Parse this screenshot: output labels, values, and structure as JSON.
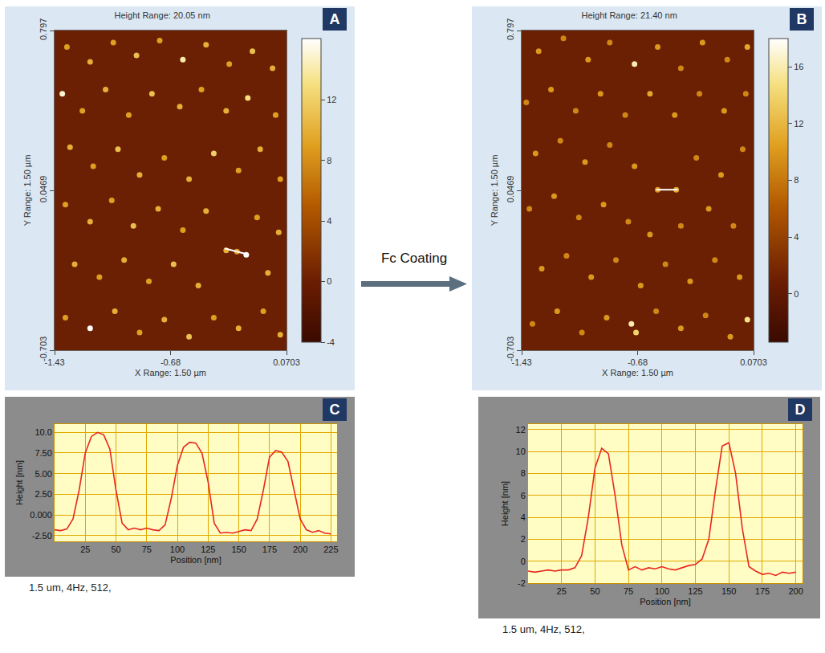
{
  "arrow_label": "Fc Coating",
  "chart_data": [
    {
      "label": "A",
      "type": "scatter",
      "title": "Height Range: 20.05 nm",
      "x_label": "X Range: 1.50 µm",
      "y_label": "Y Range: 1.50 µm",
      "xlim": [
        -1.43,
        0.0703
      ],
      "xticks": [
        -1.43,
        -0.68,
        0.0703
      ],
      "ylim": [
        -0.703,
        0.797
      ],
      "yticks": [
        -0.703,
        0.0469,
        0.797
      ],
      "colorbar_range": [
        -4,
        16.05
      ],
      "colorbar_ticks": [
        -4,
        0,
        4,
        8,
        12
      ],
      "grid": false,
      "profile_line": {
        "x": [
          -0.33,
          -0.2
        ],
        "y": [
          -0.225,
          -0.25
        ]
      },
      "particles": [
        [
          -1.35,
          0.72,
          9
        ],
        [
          -1.2,
          0.65,
          10
        ],
        [
          -1.05,
          0.74,
          9
        ],
        [
          -0.9,
          0.68,
          11
        ],
        [
          -0.75,
          0.75,
          9
        ],
        [
          -0.6,
          0.66,
          14
        ],
        [
          -0.45,
          0.73,
          10
        ],
        [
          -0.3,
          0.64,
          9
        ],
        [
          -0.15,
          0.7,
          11
        ],
        [
          -0.02,
          0.62,
          10
        ],
        [
          -1.38,
          0.5,
          15
        ],
        [
          -1.25,
          0.42,
          9
        ],
        [
          -1.1,
          0.52,
          10
        ],
        [
          -0.95,
          0.4,
          9
        ],
        [
          -0.8,
          0.5,
          11
        ],
        [
          -0.62,
          0.44,
          10
        ],
        [
          -0.48,
          0.52,
          9
        ],
        [
          -0.32,
          0.42,
          10
        ],
        [
          -0.18,
          0.48,
          13
        ],
        [
          0.0,
          0.4,
          9
        ],
        [
          -1.33,
          0.25,
          10
        ],
        [
          -1.18,
          0.16,
          9
        ],
        [
          -1.02,
          0.24,
          11
        ],
        [
          -0.88,
          0.12,
          10
        ],
        [
          -0.72,
          0.2,
          9
        ],
        [
          -0.56,
          0.1,
          10
        ],
        [
          -0.4,
          0.22,
          12
        ],
        [
          -0.24,
          0.14,
          9
        ],
        [
          -0.1,
          0.24,
          10
        ],
        [
          0.03,
          0.1,
          9
        ],
        [
          -1.36,
          -0.02,
          9
        ],
        [
          -1.2,
          -0.1,
          10
        ],
        [
          -1.06,
          0.0,
          9
        ],
        [
          -0.92,
          -0.12,
          11
        ],
        [
          -0.76,
          -0.04,
          10
        ],
        [
          -0.6,
          -0.14,
          9
        ],
        [
          -0.45,
          -0.05,
          10
        ],
        [
          -0.12,
          -0.08,
          9
        ],
        [
          0.02,
          -0.15,
          10
        ],
        [
          -1.3,
          -0.3,
          10
        ],
        [
          -1.14,
          -0.36,
          9
        ],
        [
          -0.98,
          -0.28,
          10
        ],
        [
          -0.82,
          -0.38,
          9
        ],
        [
          -0.66,
          -0.3,
          11
        ],
        [
          -0.5,
          -0.4,
          10
        ],
        [
          -0.32,
          -0.235,
          10
        ],
        [
          -0.25,
          -0.24,
          9
        ],
        [
          -0.19,
          -0.255,
          16
        ],
        [
          -0.05,
          -0.34,
          10
        ],
        [
          -1.36,
          -0.55,
          9
        ],
        [
          -1.2,
          -0.6,
          16
        ],
        [
          -1.04,
          -0.52,
          10
        ],
        [
          -0.88,
          -0.62,
          9
        ],
        [
          -0.72,
          -0.56,
          10
        ],
        [
          -0.56,
          -0.64,
          11
        ],
        [
          -0.4,
          -0.55,
          9
        ],
        [
          -0.24,
          -0.6,
          10
        ],
        [
          -0.08,
          -0.52,
          9
        ],
        [
          0.03,
          -0.63,
          10
        ]
      ]
    },
    {
      "label": "B",
      "type": "scatter",
      "title": "Height Range: 21.40 nm",
      "x_label": "X Range: 1.50 µm",
      "y_label": "Y Range: 1.50 µm",
      "xlim": [
        -1.43,
        0.0703
      ],
      "xticks": [
        -1.43,
        -0.68,
        0.0703
      ],
      "ylim": [
        -0.703,
        0.797
      ],
      "yticks": [
        -0.703,
        0.0469,
        0.797
      ],
      "colorbar_range": [
        -3.4,
        18
      ],
      "colorbar_ticks": [
        0,
        4,
        8,
        12,
        16
      ],
      "grid": false,
      "profile_line": {
        "x": [
          -0.56,
          -0.42
        ],
        "y": [
          0.05,
          0.05
        ]
      },
      "particles": [
        [
          -1.32,
          0.7,
          10
        ],
        [
          -1.16,
          0.76,
          9
        ],
        [
          -1.0,
          0.66,
          10
        ],
        [
          -0.86,
          0.74,
          9
        ],
        [
          -0.7,
          0.64,
          16
        ],
        [
          -0.55,
          0.72,
          10
        ],
        [
          -0.4,
          0.62,
          9
        ],
        [
          -0.26,
          0.74,
          10
        ],
        [
          -0.1,
          0.66,
          9
        ],
        [
          0.03,
          0.72,
          11
        ],
        [
          -1.4,
          0.46,
          9
        ],
        [
          -1.24,
          0.52,
          10
        ],
        [
          -1.08,
          0.42,
          9
        ],
        [
          -0.92,
          0.5,
          10
        ],
        [
          -0.76,
          0.4,
          9
        ],
        [
          -0.6,
          0.5,
          11
        ],
        [
          -0.44,
          0.4,
          10
        ],
        [
          -0.28,
          0.5,
          9
        ],
        [
          -0.12,
          0.42,
          10
        ],
        [
          0.02,
          0.5,
          9
        ],
        [
          -1.34,
          0.22,
          10
        ],
        [
          -1.18,
          0.28,
          9
        ],
        [
          -1.02,
          0.18,
          10
        ],
        [
          -0.86,
          0.26,
          9
        ],
        [
          -0.7,
          0.16,
          10
        ],
        [
          -0.55,
          0.05,
          10
        ],
        [
          -0.43,
          0.05,
          11
        ],
        [
          -0.3,
          0.2,
          9
        ],
        [
          -0.14,
          0.12,
          10
        ],
        [
          0.0,
          0.24,
          9
        ],
        [
          -1.38,
          -0.04,
          9
        ],
        [
          -1.22,
          0.02,
          10
        ],
        [
          -1.06,
          -0.08,
          9
        ],
        [
          -0.9,
          -0.02,
          10
        ],
        [
          -0.74,
          -0.1,
          9
        ],
        [
          -0.6,
          -0.16,
          10
        ],
        [
          -0.4,
          -0.12,
          9
        ],
        [
          -0.22,
          -0.04,
          10
        ],
        [
          -0.06,
          -0.12,
          9
        ],
        [
          -1.3,
          -0.32,
          10
        ],
        [
          -1.14,
          -0.26,
          9
        ],
        [
          -0.98,
          -0.36,
          10
        ],
        [
          -0.82,
          -0.28,
          9
        ],
        [
          -0.66,
          -0.4,
          10
        ],
        [
          -0.5,
          -0.3,
          9
        ],
        [
          -0.34,
          -0.38,
          10
        ],
        [
          -0.18,
          -0.28,
          9
        ],
        [
          -0.02,
          -0.36,
          10
        ],
        [
          -1.36,
          -0.58,
          9
        ],
        [
          -1.2,
          -0.52,
          10
        ],
        [
          -1.04,
          -0.62,
          9
        ],
        [
          -0.88,
          -0.55,
          10
        ],
        [
          -0.72,
          -0.58,
          16
        ],
        [
          -0.69,
          -0.62,
          14
        ],
        [
          -0.56,
          -0.52,
          9
        ],
        [
          -0.4,
          -0.6,
          10
        ],
        [
          -0.24,
          -0.54,
          9
        ],
        [
          -0.08,
          -0.64,
          10
        ],
        [
          0.03,
          -0.56,
          15
        ]
      ]
    },
    {
      "label": "C",
      "type": "line",
      "caption": "1.5 um, 4Hz, 512,",
      "x_label": "Position [nm]",
      "y_label": "Height [nm]",
      "color": "#e8281e",
      "grid": true,
      "xlim": [
        0,
        230
      ],
      "xticks": [
        25,
        50,
        75,
        100,
        125,
        150,
        175,
        200,
        225
      ],
      "ylim": [
        -3.2,
        11
      ],
      "yticks": [
        {
          "value": -2.5,
          "label": "-2.50"
        },
        {
          "value": 0,
          "label": "0.000"
        },
        {
          "value": 2.5,
          "label": "2.50"
        },
        {
          "value": 5,
          "label": "5.00"
        },
        {
          "value": 7.5,
          "label": "7.50"
        },
        {
          "value": 10,
          "label": "10.0"
        }
      ],
      "x": [
        0,
        5,
        10,
        15,
        20,
        25,
        30,
        35,
        40,
        45,
        50,
        55,
        60,
        65,
        70,
        75,
        80,
        85,
        90,
        95,
        100,
        105,
        110,
        115,
        120,
        125,
        130,
        135,
        140,
        145,
        150,
        155,
        160,
        165,
        170,
        175,
        180,
        185,
        190,
        195,
        200,
        205,
        210,
        215,
        220,
        225
      ],
      "values": [
        -1.8,
        -1.9,
        -1.7,
        -0.5,
        3,
        7.5,
        9.5,
        10,
        9.7,
        8,
        3,
        -1.0,
        -1.8,
        -1.6,
        -1.8,
        -1.6,
        -1.8,
        -1.9,
        -1.2,
        2,
        6,
        8.2,
        8.8,
        8.7,
        7.5,
        4,
        -1,
        -2.2,
        -2.1,
        -2.2,
        -2.0,
        -1.8,
        -1.9,
        -0.5,
        3,
        7,
        7.8,
        7.6,
        6.5,
        3,
        -0.5,
        -1.8,
        -2.1,
        -1.9,
        -2.2,
        -2.3
      ]
    },
    {
      "label": "D",
      "type": "line",
      "caption": "1.5 um, 4Hz, 512,",
      "x_label": "Position [nm]",
      "y_label": "Height [nm]",
      "color": "#e8281e",
      "grid": true,
      "xlim": [
        0,
        205
      ],
      "xticks": [
        25,
        50,
        75,
        100,
        125,
        150,
        175,
        200
      ],
      "ylim": [
        -2,
        12.5
      ],
      "yticks": [
        -2,
        0,
        2,
        4,
        6,
        8,
        10,
        12
      ],
      "x": [
        0,
        5,
        10,
        15,
        20,
        25,
        30,
        35,
        40,
        45,
        50,
        55,
        60,
        65,
        70,
        75,
        80,
        85,
        90,
        95,
        100,
        105,
        110,
        115,
        120,
        125,
        130,
        135,
        140,
        145,
        150,
        155,
        160,
        165,
        170,
        175,
        180,
        185,
        190,
        195,
        200
      ],
      "values": [
        -0.9,
        -1,
        -0.9,
        -0.8,
        -0.9,
        -0.8,
        -0.8,
        -0.6,
        0.5,
        4,
        8.5,
        10.3,
        9.8,
        6,
        1.5,
        -0.8,
        -0.5,
        -0.8,
        -0.6,
        -0.7,
        -0.5,
        -0.7,
        -0.8,
        -0.6,
        -0.4,
        -0.3,
        0.2,
        2,
        6.5,
        10.5,
        10.8,
        8,
        3,
        -0.5,
        -0.9,
        -1.2,
        -1.1,
        -1.3,
        -1.0,
        -1.1,
        -1.0
      ]
    }
  ]
}
